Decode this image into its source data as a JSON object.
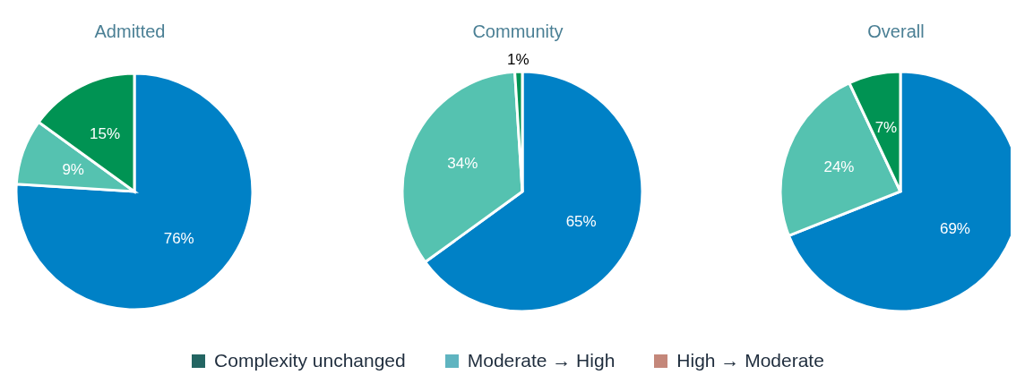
{
  "chart_data": [
    {
      "type": "pie",
      "title": "Admitted",
      "categories": [
        null,
        null,
        null
      ],
      "values": [
        76,
        9,
        15
      ],
      "colors": [
        "#0081c6",
        "#55c2b0",
        "#009353"
      ],
      "value_labels": [
        "76%",
        "9%",
        "15%"
      ]
    },
    {
      "type": "pie",
      "title": "Community",
      "categories": [
        null,
        null,
        null
      ],
      "values": [
        65,
        34,
        1
      ],
      "colors": [
        "#0081c6",
        "#55c2b0",
        "#009353"
      ],
      "value_labels": [
        "65%",
        "34%",
        "1%"
      ]
    },
    {
      "type": "pie",
      "title": "Overall",
      "categories": [
        null,
        null,
        null
      ],
      "values": [
        69,
        24,
        7
      ],
      "colors": [
        "#0081c6",
        "#55c2b0",
        "#009353"
      ],
      "value_labels": [
        "69%",
        "24%",
        "7%"
      ]
    },
    {
      "type": "other",
      "annotations": [
        "Complexity unchanged",
        "Moderate → High",
        "High → Moderate"
      ],
      "colors": [
        "#236562",
        "#5fb4c0",
        "#c4877a"
      ]
    }
  ]
}
